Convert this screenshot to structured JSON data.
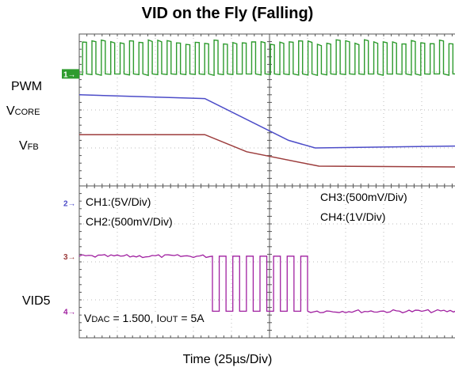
{
  "chart_data": {
    "type": "line",
    "title": "VID on the Fly (Falling)",
    "xlabel": "Time (25µs/Div)",
    "grid": true,
    "divisions": {
      "x": 10,
      "y": 8
    },
    "channel_labels": {
      "pwm": "PWM",
      "vcore_main": "V",
      "vcore_sub": "CORE",
      "vfb_main": "V",
      "vfb_sub": "FB",
      "vid5": "VID5"
    },
    "markers": {
      "ch1": "1→",
      "ch2": "2→",
      "ch3": "3→",
      "ch4": "4→"
    },
    "annotations": {
      "ch1": "CH1:(5V/Div)",
      "ch2": "CH2:(500mV/Div)",
      "ch3": "CH3:(500mV/Div)",
      "ch4": "CH4:(1V/Div)",
      "vdac_pre": "V",
      "vdac_sub": "DAC",
      "vdac_post": " = 1.500, I",
      "iout_sub": "OUT",
      "iout_post": " = 5A"
    },
    "colors": {
      "pwm": "#2e9b2e",
      "vcore": "#4c4cc8",
      "vfb": "#9c3c3c",
      "vid5": "#a020a0",
      "grid": "#bbbbbb",
      "axis": "#555555"
    },
    "x_range_div": [
      0,
      10
    ],
    "series": [
      {
        "name": "PWM",
        "kind": "pwm",
        "pulses_per_div": 4.05,
        "low_div": 6.95,
        "high_div": 7.85
      },
      {
        "name": "VCORE",
        "x": [
          0,
          3.3,
          5.5,
          6.2,
          10
        ],
        "y": [
          6.4,
          6.3,
          5.2,
          5.0,
          5.05
        ]
      },
      {
        "name": "VFB",
        "x": [
          0,
          3.3,
          4.4,
          6.3,
          10
        ],
        "y": [
          5.35,
          5.35,
          4.9,
          4.52,
          4.5
        ]
      },
      {
        "name": "VID5",
        "kind": "toggle",
        "toggle_start_div": 3.5,
        "toggle_end_div": 6.0,
        "toggles": 7,
        "high_div": 2.15,
        "low_div": 0.7
      }
    ]
  }
}
